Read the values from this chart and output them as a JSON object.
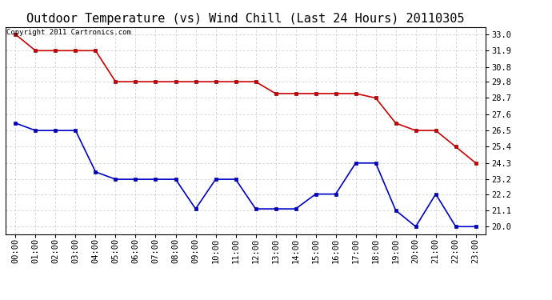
{
  "title": "Outdoor Temperature (vs) Wind Chill (Last 24 Hours) 20110305",
  "copyright_text": "Copyright 2011 Cartronics.com",
  "x_labels": [
    "00:00",
    "01:00",
    "02:00",
    "03:00",
    "04:00",
    "05:00",
    "06:00",
    "07:00",
    "08:00",
    "09:00",
    "10:00",
    "11:00",
    "12:00",
    "13:00",
    "14:00",
    "15:00",
    "16:00",
    "17:00",
    "18:00",
    "19:00",
    "20:00",
    "21:00",
    "22:00",
    "23:00"
  ],
  "red_data": [
    33.0,
    31.9,
    31.9,
    31.9,
    31.9,
    29.8,
    29.8,
    29.8,
    29.8,
    29.8,
    29.8,
    29.8,
    29.8,
    29.0,
    29.0,
    29.0,
    29.0,
    29.0,
    28.7,
    27.0,
    26.5,
    26.5,
    25.4,
    24.3
  ],
  "blue_data": [
    27.0,
    26.5,
    26.5,
    26.5,
    23.7,
    23.2,
    23.2,
    23.2,
    23.2,
    21.2,
    23.2,
    23.2,
    21.2,
    21.2,
    21.2,
    22.2,
    22.2,
    24.3,
    24.3,
    21.1,
    20.0,
    22.2,
    20.0,
    20.0
  ],
  "ylim_min": 19.5,
  "ylim_max": 33.5,
  "yticks": [
    20.0,
    21.1,
    22.2,
    23.2,
    24.3,
    25.4,
    26.5,
    27.6,
    28.7,
    29.8,
    30.8,
    31.9,
    33.0
  ],
  "red_color": "#cc0000",
  "blue_color": "#0000cc",
  "grid_color": "#c8c8c8",
  "bg_color": "#ffffff",
  "title_fontsize": 11,
  "copyright_fontsize": 6.5,
  "tick_fontsize": 7.5
}
